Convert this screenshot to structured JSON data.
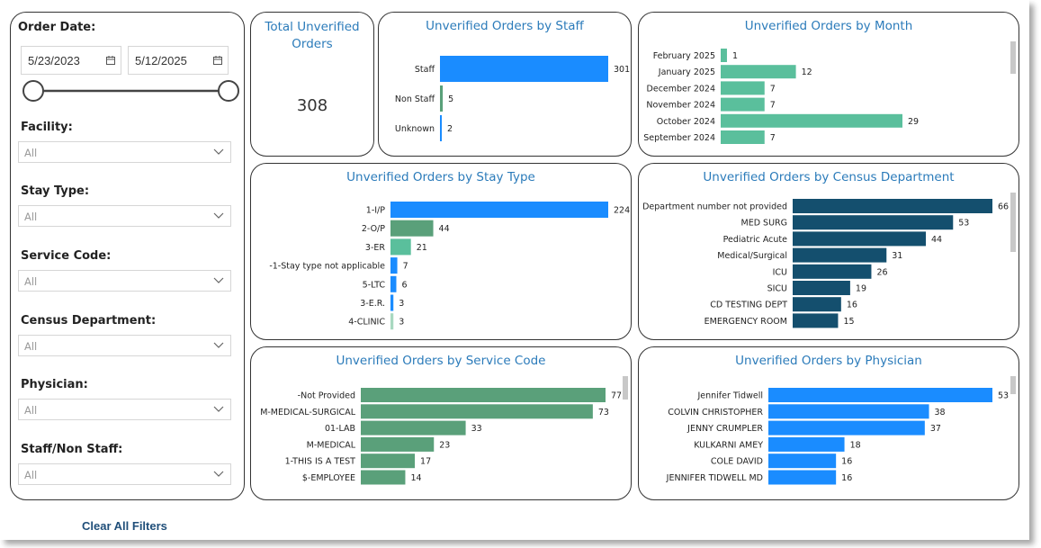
{
  "filters": {
    "order_date": {
      "label": "Order Date:",
      "start": "5/23/2023",
      "end": "5/12/2025"
    },
    "facility": {
      "label": "Facility:",
      "value": "All"
    },
    "stay_type": {
      "label": "Stay Type:",
      "value": "All"
    },
    "service_code": {
      "label": "Service Code:",
      "value": "All"
    },
    "census_department": {
      "label": "Census Department:",
      "value": "All"
    },
    "physician": {
      "label": "Physician:",
      "value": "All"
    },
    "staff_non_staff": {
      "label": "Staff/Non Staff:",
      "value": "All"
    },
    "clear_all": "Clear All Filters"
  },
  "kpi": {
    "title": "Total Unverified Orders",
    "value": "308"
  },
  "colors": {
    "blue": "#1a8cff",
    "green": "#5aa07a",
    "teal": "#5abf9c",
    "navy": "#144f6e",
    "title": "#2b7bba"
  },
  "chart_data": [
    {
      "id": "staff",
      "type": "bar",
      "title": "Unverified Orders by Staff",
      "categories": [
        "Staff",
        "Non Staff",
        "Unknown"
      ],
      "values": [
        301,
        5,
        2
      ],
      "colors": [
        "#1a8cff",
        "#5aa07a",
        "#1a8cff"
      ]
    },
    {
      "id": "month",
      "type": "bar",
      "title": "Unverified Orders by Month",
      "categories": [
        "February 2025",
        "January 2025",
        "December 2024",
        "November 2024",
        "October 2024",
        "September 2024"
      ],
      "values": [
        1,
        12,
        7,
        7,
        29,
        7
      ],
      "colors": [
        "#5abf9c",
        "#5abf9c",
        "#5abf9c",
        "#5abf9c",
        "#5abf9c",
        "#5abf9c"
      ]
    },
    {
      "id": "stay",
      "type": "bar",
      "title": "Unverified Orders by Stay Type",
      "categories": [
        "1-I/P",
        "2-O/P",
        "3-ER",
        "-1-Stay type not applicable",
        "5-LTC",
        "3-E.R.",
        "4-CLINIC"
      ],
      "values": [
        224,
        44,
        21,
        7,
        6,
        3,
        3
      ],
      "colors": [
        "#1a8cff",
        "#5aa07a",
        "#5abf9c",
        "#1a8cff",
        "#1a8cff",
        "#1a8cff",
        "#a8d8c0"
      ]
    },
    {
      "id": "census",
      "type": "bar",
      "title": "Unverified Orders by Census Department",
      "categories": [
        "Department number not provided",
        "MED SURG",
        "Pediatric Acute",
        "Medical/Surgical",
        "ICU",
        "SICU",
        "CD TESTING DEPT",
        "EMERGENCY ROOM"
      ],
      "values": [
        66,
        53,
        44,
        31,
        26,
        19,
        16,
        15
      ],
      "colors": [
        "#144f6e",
        "#144f6e",
        "#144f6e",
        "#144f6e",
        "#144f6e",
        "#144f6e",
        "#144f6e",
        "#144f6e"
      ]
    },
    {
      "id": "service",
      "type": "bar",
      "title": "Unverified Orders by Service Code",
      "categories": [
        "-Not Provided",
        "M-MEDICAL-SURGICAL",
        "01-LAB",
        "M-MEDICAL",
        "1-THIS IS A TEST",
        "$-EMPLOYEE"
      ],
      "values": [
        77,
        73,
        33,
        23,
        17,
        14
      ],
      "colors": [
        "#5aa07a",
        "#5aa07a",
        "#5aa07a",
        "#5aa07a",
        "#5aa07a",
        "#5aa07a"
      ]
    },
    {
      "id": "physician",
      "type": "bar",
      "title": "Unverified Orders by Physician",
      "categories": [
        "Jennifer Tidwell",
        "COLVIN CHRISTOPHER",
        "JENNY CRUMPLER",
        "KULKARNI AMEY",
        "COLE DAVID",
        "JENNIFER TIDWELL MD"
      ],
      "values": [
        53,
        38,
        37,
        18,
        16,
        16
      ],
      "colors": [
        "#1a8cff",
        "#1a8cff",
        "#1a8cff",
        "#1a8cff",
        "#1a8cff",
        "#1a8cff"
      ]
    }
  ]
}
